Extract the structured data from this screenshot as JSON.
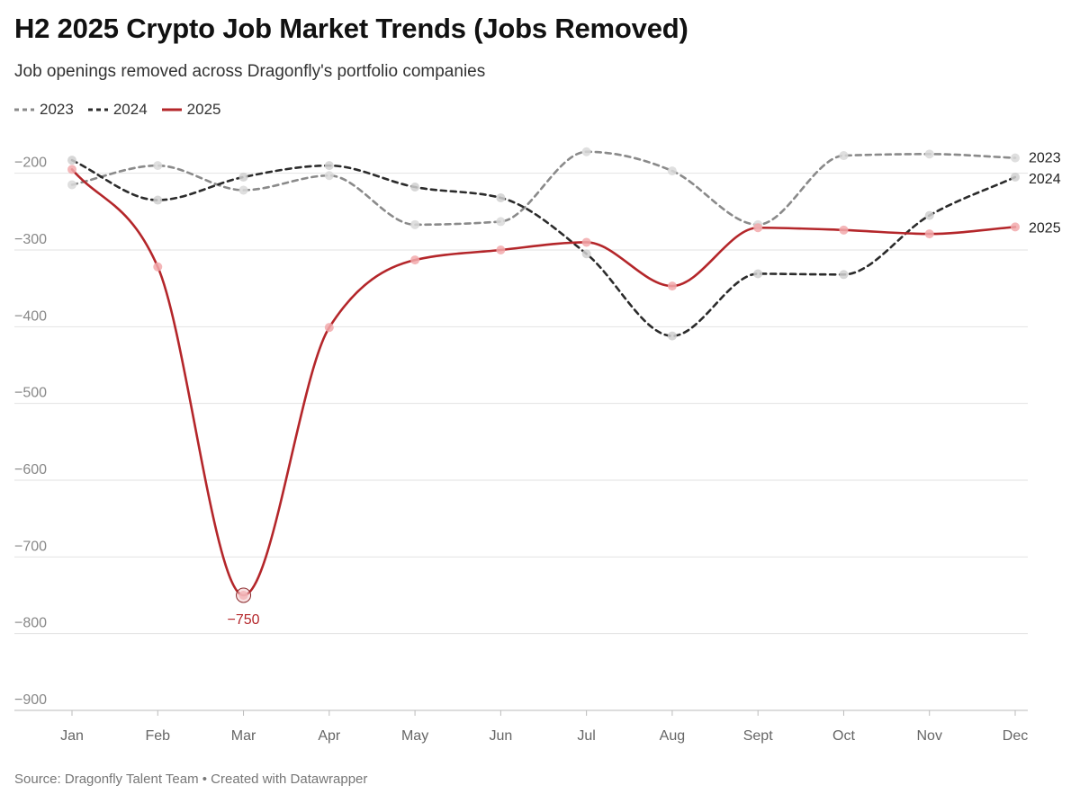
{
  "title": "H2 2025 Crypto Job Market Trends (Jobs Removed)",
  "subtitle": "Job openings removed across Dragonfly's portfolio companies",
  "source": "Source: Dragonfly Talent Team • Created with Datawrapper",
  "legend": [
    {
      "label": "2023",
      "color": "#8a8a8a",
      "style": "dashed"
    },
    {
      "label": "2024",
      "color": "#2b2b2b",
      "style": "dashed"
    },
    {
      "label": "2025",
      "color": "#b4262a",
      "style": "solid"
    }
  ],
  "chart_data": {
    "type": "line",
    "title": "H2 2025 Crypto Job Market Trends (Jobs Removed)",
    "xlabel": "",
    "ylabel": "",
    "categories": [
      "Jan",
      "Feb",
      "Mar",
      "Apr",
      "May",
      "Jun",
      "Jul",
      "Aug",
      "Sept",
      "Oct",
      "Nov",
      "Dec"
    ],
    "ylim": [
      -900,
      -150
    ],
    "yticks": [
      -200,
      -300,
      -400,
      -500,
      -600,
      -700,
      -800,
      -900
    ],
    "ytick_labels": [
      "−200",
      "−300",
      "−400",
      "−500",
      "−600",
      "−700",
      "−800",
      "−900"
    ],
    "grid": true,
    "legend_position": "top-left",
    "series": [
      {
        "name": "2023",
        "color": "#8a8a8a",
        "dash": true,
        "values": [
          -215,
          -190,
          -222,
          -203,
          -267,
          -263,
          -172,
          -197,
          -267,
          -177,
          -175,
          -180
        ]
      },
      {
        "name": "2024",
        "color": "#2b2b2b",
        "dash": true,
        "values": [
          -183,
          -235,
          -205,
          -190,
          -218,
          -232,
          -305,
          -412,
          -331,
          -332,
          -255,
          -205
        ]
      },
      {
        "name": "2025",
        "color": "#b4262a",
        "dash": false,
        "values": [
          -195,
          -322,
          -750,
          -401,
          -313,
          -300,
          -290,
          -347,
          -271,
          -274,
          -279,
          -270
        ]
      }
    ],
    "annotations": [
      {
        "series": "2025",
        "category": "Mar",
        "value": -750,
        "text": "−750"
      }
    ]
  }
}
